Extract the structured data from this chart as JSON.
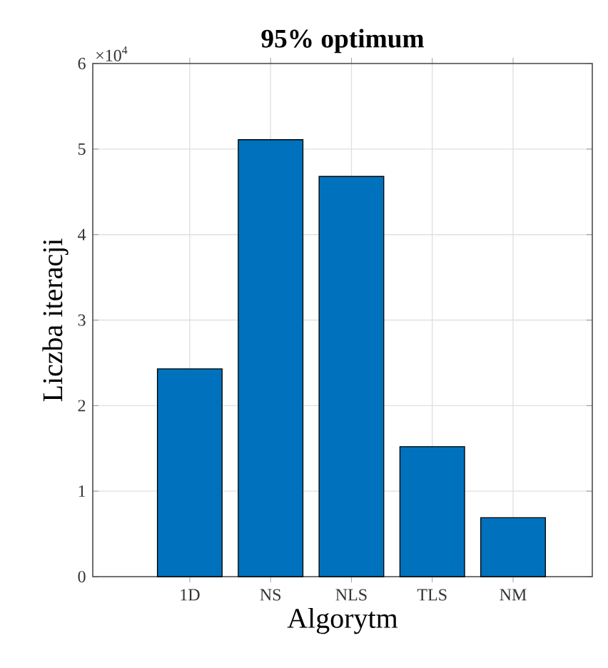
{
  "chart_data": {
    "type": "bar",
    "title": "95% optimum",
    "xlabel": "Algorytm",
    "ylabel": "Liczba iteracji",
    "categories": [
      "1D",
      "NS",
      "NLS",
      "TLS",
      "NM"
    ],
    "values": [
      2.43,
      5.11,
      4.68,
      1.52,
      0.69
    ],
    "color": "#0072bd",
    "ylim": [
      0,
      6
    ],
    "yticks": [
      0,
      1,
      2,
      3,
      4,
      5,
      6
    ],
    "annotations": [
      "×10$^{4}$"
    ],
    "grid": true
  }
}
